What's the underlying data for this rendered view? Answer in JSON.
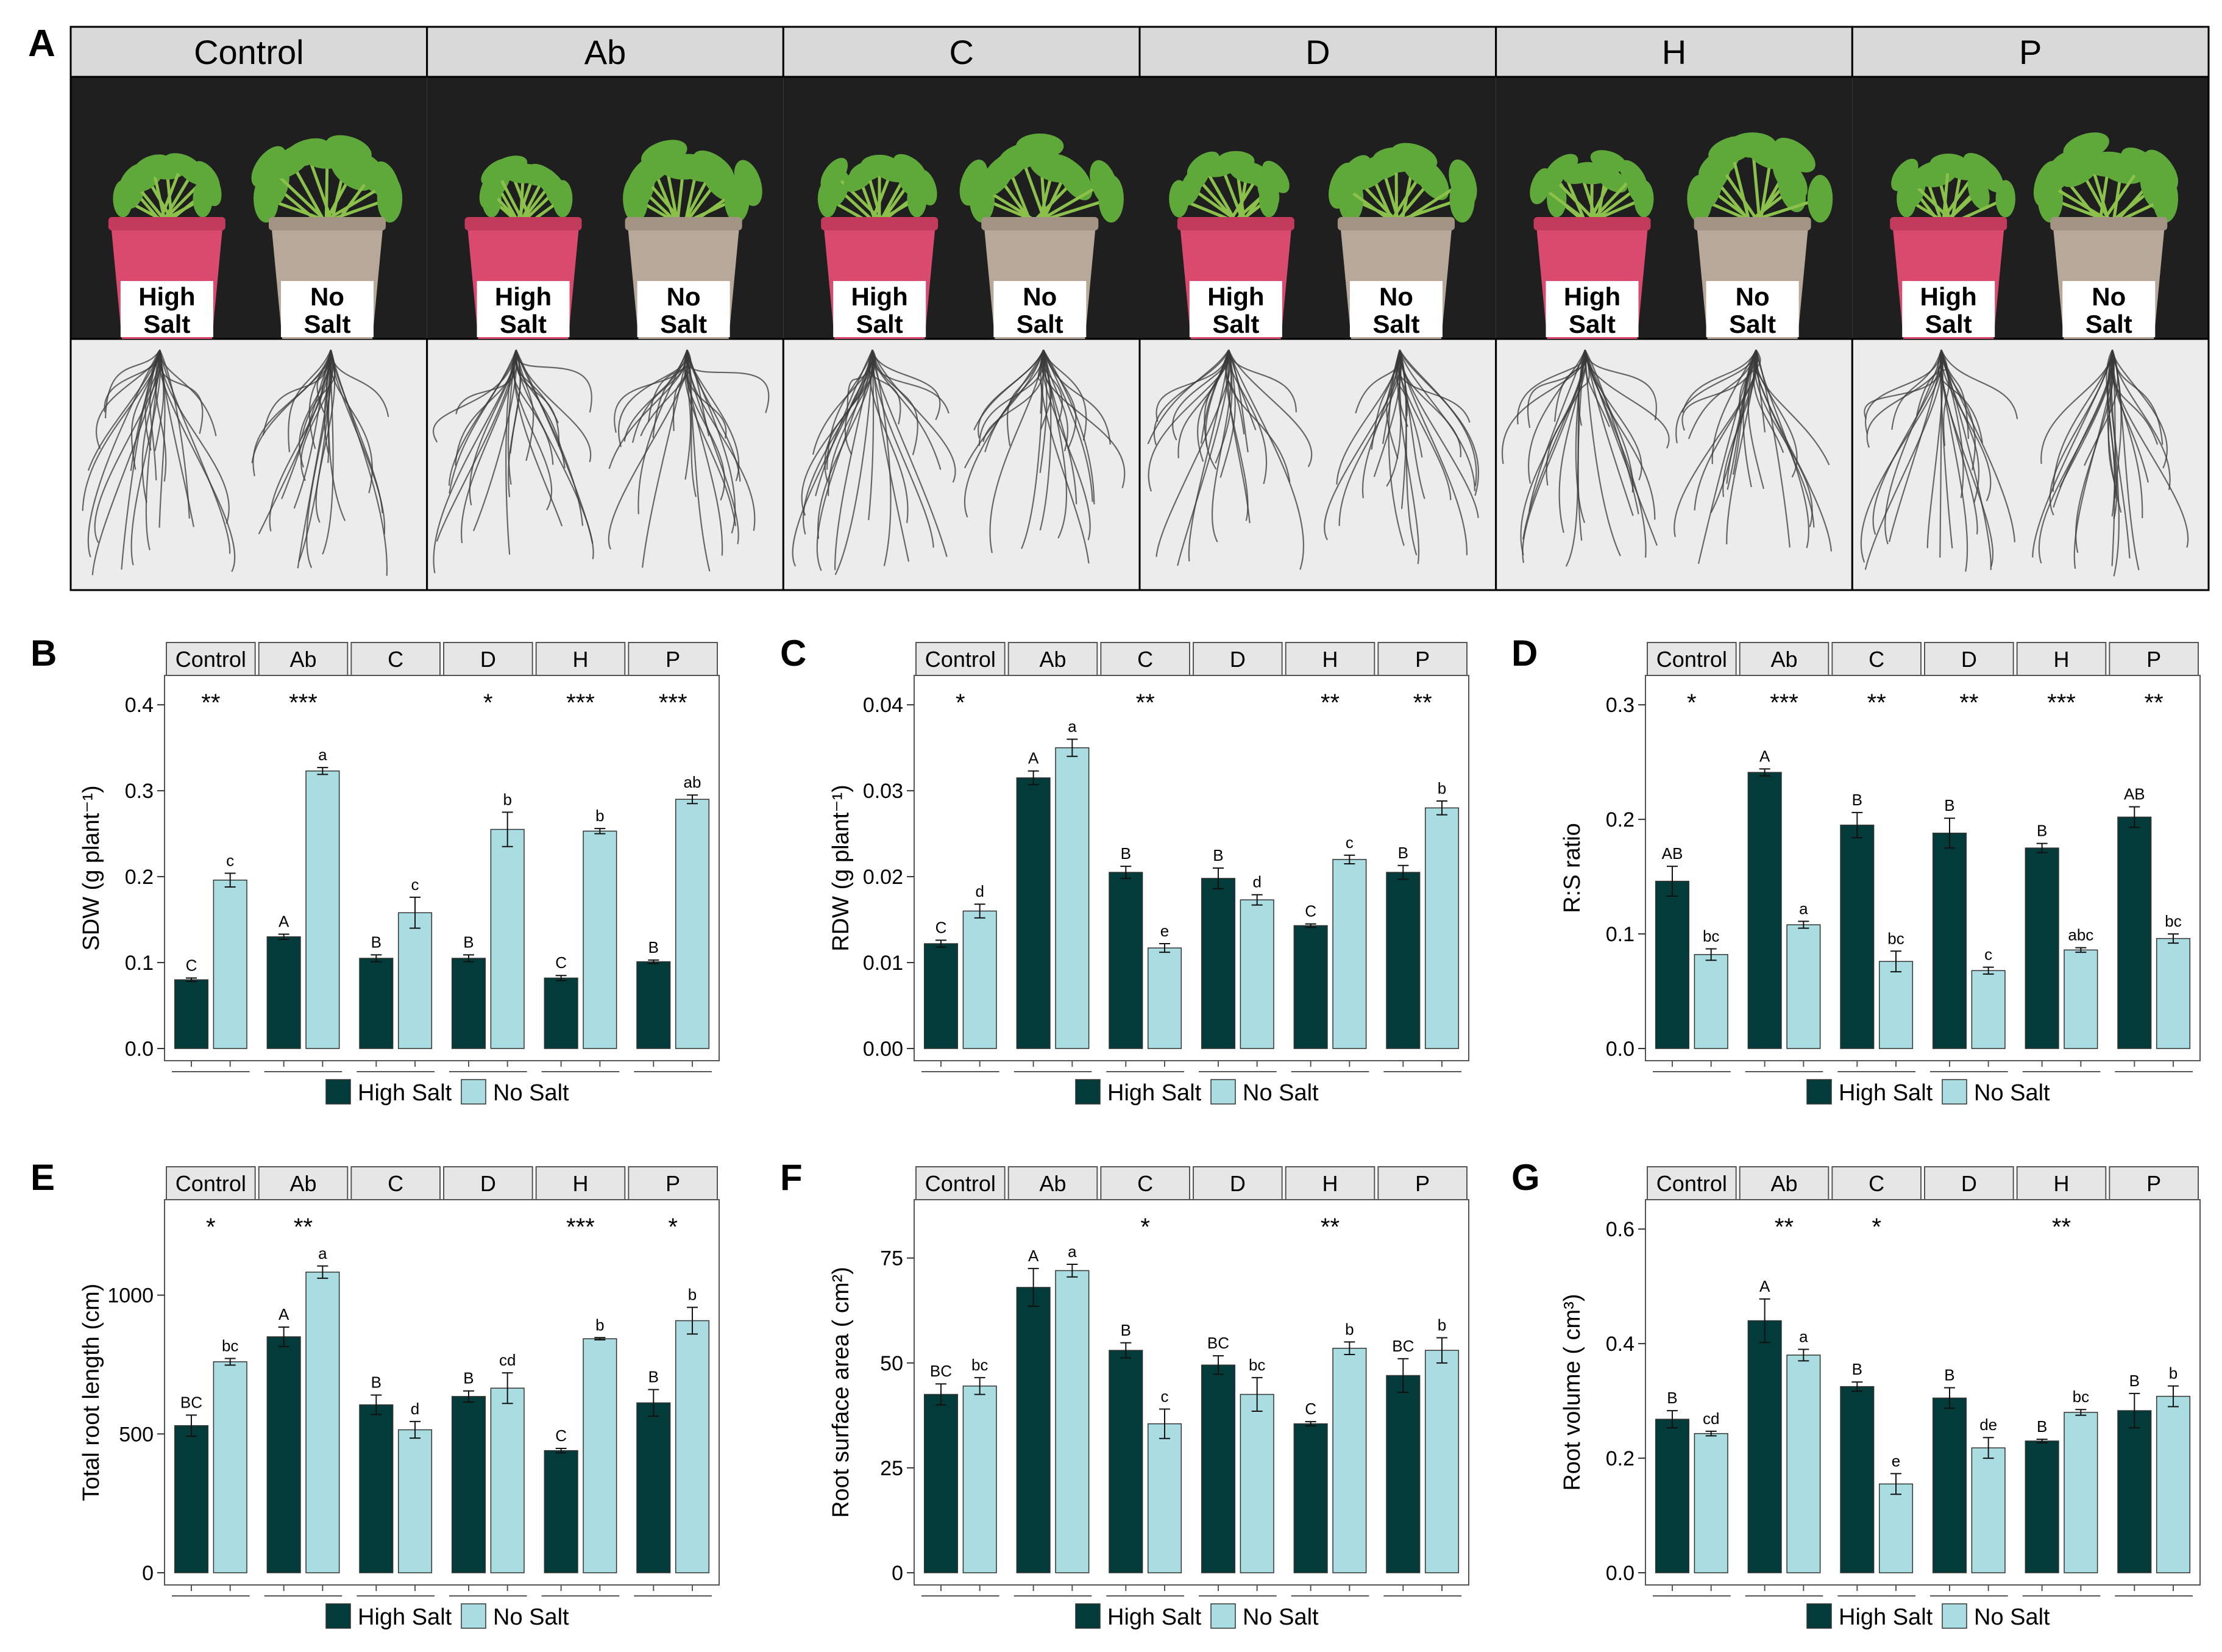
{
  "figure": {
    "panel_a": {
      "letter": "A",
      "treatments": [
        "Control",
        "Ab",
        "C",
        "D",
        "H",
        "P"
      ],
      "pot_labels": {
        "high": [
          "High",
          "Salt"
        ],
        "no": [
          "No",
          "Salt"
        ]
      },
      "colors": {
        "pot_high": "#d94a6e",
        "pot_no": "#b8a89a",
        "shoot_bg": "#1f1f1f",
        "root_bg": "#ececec",
        "header_bg": "#d9d9d9",
        "leaf": "#5fa83a"
      }
    },
    "legend": {
      "high": "High Salt",
      "no": "No Salt"
    },
    "colors": {
      "high": "#033a3a",
      "no": "#a9dde2",
      "strip": "#e6e6e6"
    }
  },
  "chart_data": [
    {
      "id": "B",
      "type": "bar",
      "letter": "B",
      "categories": [
        "Control",
        "Ab",
        "C",
        "D",
        "H",
        "P"
      ],
      "ylabel": "SDW (g plant⁻¹)",
      "ylim": [
        0,
        0.42
      ],
      "yticks": [
        0.0,
        0.1,
        0.2,
        0.3,
        0.4
      ],
      "ytick_labels": [
        "0.0",
        "0.1",
        "0.2",
        "0.3",
        "0.4"
      ],
      "series": [
        {
          "name": "High Salt",
          "values": [
            0.08,
            0.13,
            0.105,
            0.105,
            0.082,
            0.101
          ],
          "errors": [
            0.002,
            0.003,
            0.004,
            0.004,
            0.003,
            0.002
          ],
          "letters": [
            "C",
            "A",
            "B",
            "B",
            "C",
            "B"
          ]
        },
        {
          "name": "No Salt",
          "values": [
            0.196,
            0.323,
            0.158,
            0.255,
            0.253,
            0.29
          ],
          "errors": [
            0.008,
            0.004,
            0.018,
            0.02,
            0.003,
            0.005
          ],
          "letters": [
            "c",
            "a",
            "c",
            "b",
            "b",
            "ab"
          ]
        }
      ],
      "significance": [
        "**",
        "***",
        "",
        "*",
        "***",
        "***"
      ]
    },
    {
      "id": "C",
      "type": "bar",
      "letter": "C",
      "categories": [
        "Control",
        "Ab",
        "C",
        "D",
        "H",
        "P"
      ],
      "ylabel": "RDW (g plant⁻¹)",
      "ylim": [
        0,
        0.042
      ],
      "yticks": [
        0.0,
        0.01,
        0.02,
        0.03,
        0.04
      ],
      "ytick_labels": [
        "0.00",
        "0.01",
        "0.02",
        "0.03",
        "0.04"
      ],
      "series": [
        {
          "name": "High Salt",
          "values": [
            0.0122,
            0.0315,
            0.0205,
            0.0198,
            0.0143,
            0.0205
          ],
          "errors": [
            0.0004,
            0.0008,
            0.0007,
            0.0012,
            0.0002,
            0.0008
          ],
          "letters": [
            "C",
            "A",
            "B",
            "B",
            "C",
            "B"
          ]
        },
        {
          "name": "No Salt",
          "values": [
            0.016,
            0.035,
            0.0117,
            0.0173,
            0.022,
            0.028
          ],
          "errors": [
            0.0008,
            0.001,
            0.0005,
            0.0006,
            0.0005,
            0.0008
          ],
          "letters": [
            "d",
            "a",
            "e",
            "d",
            "c",
            "b"
          ]
        }
      ],
      "significance": [
        "*",
        "",
        "**",
        "",
        "**",
        "**"
      ]
    },
    {
      "id": "D",
      "type": "bar",
      "letter": "D",
      "categories": [
        "Control",
        "Ab",
        "C",
        "D",
        "H",
        "P"
      ],
      "ylabel": "R:S ratio",
      "ylim": [
        0,
        0.315
      ],
      "yticks": [
        0.0,
        0.1,
        0.2,
        0.3
      ],
      "ytick_labels": [
        "0.0",
        "0.1",
        "0.2",
        "0.3"
      ],
      "series": [
        {
          "name": "High Salt",
          "values": [
            0.146,
            0.241,
            0.195,
            0.188,
            0.175,
            0.202
          ],
          "errors": [
            0.013,
            0.003,
            0.011,
            0.013,
            0.004,
            0.009
          ],
          "letters": [
            "AB",
            "A",
            "B",
            "B",
            "B",
            "AB"
          ]
        },
        {
          "name": "No Salt",
          "values": [
            0.082,
            0.108,
            0.076,
            0.068,
            0.086,
            0.096
          ],
          "errors": [
            0.005,
            0.003,
            0.009,
            0.003,
            0.002,
            0.004
          ],
          "letters": [
            "bc",
            "a",
            "bc",
            "c",
            "abc",
            "bc"
          ]
        }
      ],
      "significance": [
        "*",
        "***",
        "**",
        "**",
        "***",
        "**"
      ]
    },
    {
      "id": "E",
      "type": "bar",
      "letter": "E",
      "categories": [
        "Control",
        "Ab",
        "C",
        "D",
        "H",
        "P"
      ],
      "ylabel": "Total root length (cm)",
      "ylim": [
        0,
        1300
      ],
      "yticks": [
        0,
        500,
        1000
      ],
      "ytick_labels": [
        "0",
        "500",
        "1000"
      ],
      "series": [
        {
          "name": "High Salt",
          "values": [
            530,
            850,
            605,
            635,
            440,
            612
          ],
          "errors": [
            38,
            35,
            35,
            20,
            8,
            48
          ],
          "letters": [
            "BC",
            "A",
            "B",
            "B",
            "C",
            "B"
          ]
        },
        {
          "name": "No Salt",
          "values": [
            760,
            1083,
            515,
            665,
            843,
            908
          ],
          "errors": [
            12,
            22,
            30,
            55,
            4,
            48
          ],
          "letters": [
            "bc",
            "a",
            "d",
            "cd",
            "b",
            "b"
          ]
        }
      ],
      "significance": [
        "*",
        "**",
        "",
        "",
        "***",
        "*"
      ]
    },
    {
      "id": "F",
      "type": "bar",
      "letter": "F",
      "categories": [
        "Control",
        "Ab",
        "C",
        "D",
        "H",
        "P"
      ],
      "ylabel": "Root surface area ( cm²)",
      "ylim": [
        0,
        86
      ],
      "yticks": [
        0,
        25,
        50,
        75
      ],
      "ytick_labels": [
        "0",
        "25",
        "50",
        "75"
      ],
      "series": [
        {
          "name": "High Salt",
          "values": [
            42.5,
            68.0,
            53.0,
            49.5,
            35.5,
            47.0
          ],
          "errors": [
            2.5,
            4.5,
            1.8,
            2.2,
            0.5,
            4.0
          ],
          "letters": [
            "BC",
            "A",
            "B",
            "BC",
            "C",
            "BC"
          ]
        },
        {
          "name": "No Salt",
          "values": [
            44.5,
            72.0,
            35.5,
            42.5,
            53.5,
            53.0
          ],
          "errors": [
            2.0,
            1.5,
            3.5,
            4.0,
            1.5,
            3.0
          ],
          "letters": [
            "bc",
            "a",
            "c",
            "bc",
            "b",
            "b"
          ]
        }
      ],
      "significance": [
        "",
        "",
        "*",
        "",
        "**",
        ""
      ]
    },
    {
      "id": "G",
      "type": "bar",
      "letter": "G",
      "categories": [
        "Control",
        "Ab",
        "C",
        "D",
        "H",
        "P"
      ],
      "ylabel": "Root volume ( cm³)",
      "ylim": [
        0,
        0.63
      ],
      "yticks": [
        0.0,
        0.2,
        0.4,
        0.6
      ],
      "ytick_labels": [
        "0.0",
        "0.2",
        "0.4",
        "0.6"
      ],
      "series": [
        {
          "name": "High Salt",
          "values": [
            0.268,
            0.44,
            0.325,
            0.305,
            0.23,
            0.283
          ],
          "errors": [
            0.015,
            0.038,
            0.008,
            0.018,
            0.003,
            0.03
          ],
          "letters": [
            "B",
            "A",
            "B",
            "B",
            "B",
            "B"
          ]
        },
        {
          "name": "No Salt",
          "values": [
            0.243,
            0.38,
            0.155,
            0.218,
            0.28,
            0.308
          ],
          "errors": [
            0.004,
            0.01,
            0.018,
            0.018,
            0.005,
            0.018
          ],
          "letters": [
            "cd",
            "a",
            "e",
            "de",
            "bc",
            "b"
          ]
        }
      ],
      "significance": [
        "",
        "**",
        "*",
        "",
        "**",
        ""
      ]
    }
  ]
}
